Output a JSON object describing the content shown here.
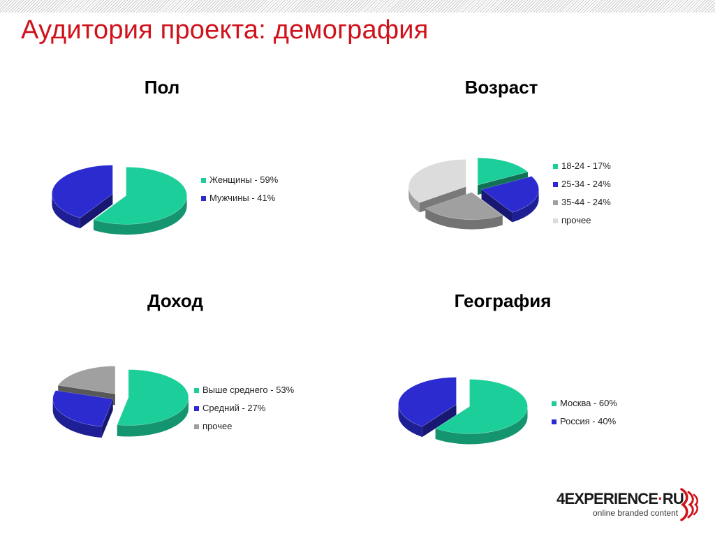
{
  "slide": {
    "title": "Аудитория проекта: демография"
  },
  "logo": {
    "prefix": "4",
    "brand": "EXPERIENCE",
    "dot": "·",
    "suffix": "RU",
    "tagline": "online branded content"
  },
  "chart_data": [
    {
      "type": "pie",
      "title": "Пол",
      "categories": [
        "Женщины",
        "Мужчины"
      ],
      "values": [
        59,
        41
      ],
      "legend": [
        "Женщины - 59%",
        "Мужчины - 41%"
      ],
      "colors": [
        "#1ccf9a",
        "#2b2bcf"
      ],
      "legend_position": "right"
    },
    {
      "type": "pie",
      "title": "Возраст",
      "categories": [
        "18-24",
        "25-34",
        "35-44",
        "прочее"
      ],
      "values": [
        17,
        24,
        24,
        35
      ],
      "legend": [
        "18-24 - 17%",
        "25-34 - 24%",
        "35-44 - 24%",
        "прочее"
      ],
      "colors": [
        "#1ccf9a",
        "#2b2bcf",
        "#a0a0a0",
        "#dcdcdc"
      ],
      "legend_position": "right"
    },
    {
      "type": "pie",
      "title": "Доход",
      "categories": [
        "Выше среднего",
        "Средний",
        "прочее"
      ],
      "values": [
        53,
        27,
        20
      ],
      "legend": [
        "Выше среднего - 53%",
        "Средний - 27%",
        "прочее"
      ],
      "colors": [
        "#1ccf9a",
        "#2b2bcf",
        "#a0a0a0"
      ],
      "legend_position": "right"
    },
    {
      "type": "pie",
      "title": "География",
      "categories": [
        "Москва",
        "Россия"
      ],
      "values": [
        60,
        40
      ],
      "legend": [
        "Москва - 60%",
        "Россия - 40%"
      ],
      "colors": [
        "#1ccf9a",
        "#2b2bcf"
      ],
      "legend_position": "right"
    }
  ]
}
